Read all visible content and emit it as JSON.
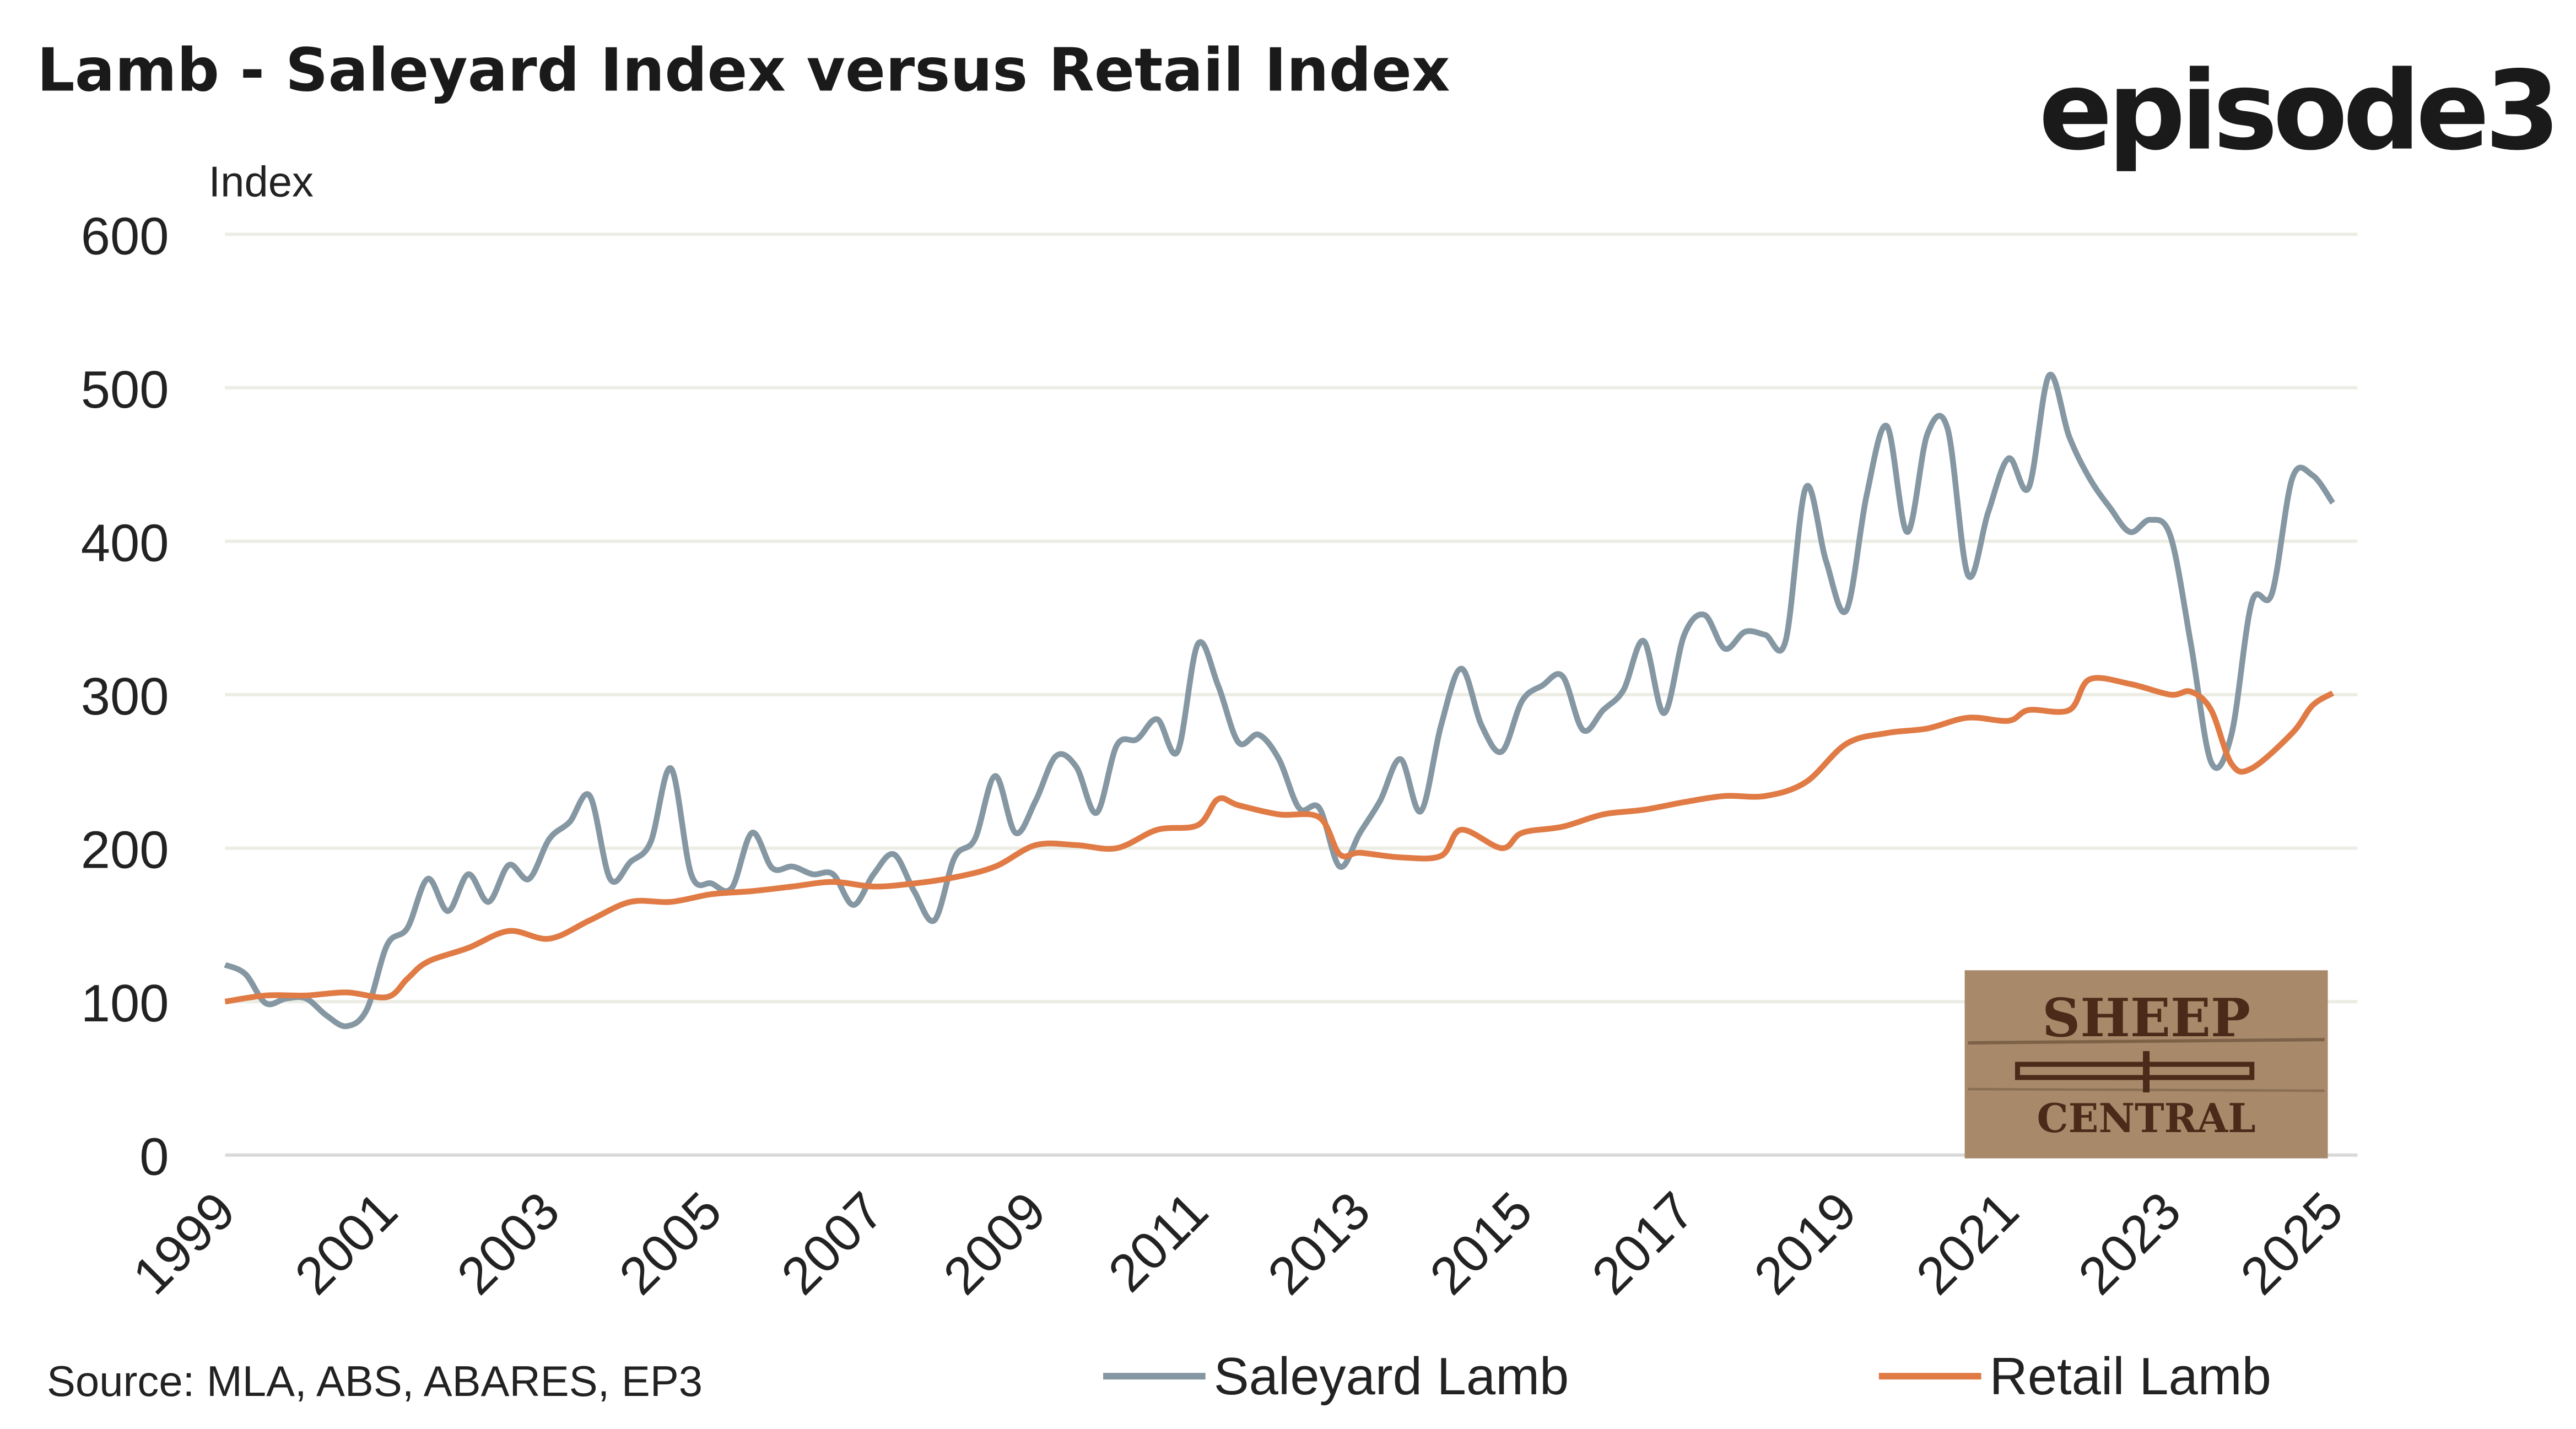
{
  "title": "Lamb - Saleyard Index versus Retail Index",
  "brand_logo": "episode3",
  "watermark_logo": {
    "line1": "SHEEP",
    "line2": "CENTRAL"
  },
  "source": "Source: MLA, ABS, ABARES, EP3",
  "colors": {
    "saleyard": "#8597a2",
    "retail": "#e07b45",
    "grid": "#ecede4"
  },
  "chart_data": {
    "type": "line",
    "title": "Lamb - Saleyard Index versus Retail Index",
    "ylabel": "Index",
    "xlabel": "",
    "ylim": [
      0,
      600
    ],
    "xlim": [
      1999,
      2025
    ],
    "yticks": [
      0,
      100,
      200,
      300,
      400,
      500,
      600
    ],
    "xticks": [
      "1999",
      "2001",
      "2003",
      "2005",
      "2007",
      "2009",
      "2011",
      "2013",
      "2015",
      "2017",
      "2019",
      "2021",
      "2023",
      "2025"
    ],
    "grid": true,
    "legend_position": "bottom",
    "series": [
      {
        "name": "Saleyard Lamb",
        "color": "#8597a2",
        "x": [
          1999,
          1999.25,
          1999.5,
          1999.75,
          2000,
          2000.25,
          2000.5,
          2000.75,
          2001,
          2001.25,
          2001.5,
          2001.75,
          2002,
          2002.25,
          2002.5,
          2002.75,
          2003,
          2003.25,
          2003.5,
          2003.75,
          2004,
          2004.25,
          2004.5,
          2004.75,
          2005,
          2005.25,
          2005.5,
          2005.75,
          2006,
          2006.25,
          2006.5,
          2006.75,
          2007,
          2007.25,
          2007.5,
          2007.75,
          2008,
          2008.25,
          2008.5,
          2008.75,
          2009,
          2009.25,
          2009.5,
          2009.75,
          2010,
          2010.25,
          2010.5,
          2010.75,
          2011,
          2011.25,
          2011.5,
          2011.75,
          2012,
          2012.25,
          2012.5,
          2012.75,
          2013,
          2013.25,
          2013.5,
          2013.75,
          2014,
          2014.25,
          2014.5,
          2014.75,
          2015,
          2015.25,
          2015.5,
          2015.75,
          2016,
          2016.25,
          2016.5,
          2016.75,
          2017,
          2017.25,
          2017.5,
          2017.75,
          2018,
          2018.25,
          2018.5,
          2018.75,
          2019,
          2019.25,
          2019.5,
          2019.75,
          2020,
          2020.25,
          2020.5,
          2020.75,
          2021,
          2021.25,
          2021.5,
          2021.75,
          2022,
          2022.25,
          2022.5,
          2022.75,
          2023,
          2023.25,
          2023.5,
          2023.75,
          2024,
          2024.25,
          2024.5,
          2024.75,
          2025
        ],
        "values": [
          124,
          118,
          99,
          102,
          102,
          91,
          84,
          95,
          137,
          148,
          180,
          159,
          183,
          165,
          189,
          180,
          206,
          217,
          234,
          180,
          191,
          204,
          252,
          183,
          177,
          174,
          210,
          187,
          188,
          183,
          183,
          163,
          183,
          196,
          172,
          153,
          194,
          206,
          247,
          210,
          231,
          260,
          253,
          223,
          267,
          271,
          284,
          263,
          333,
          306,
          269,
          274,
          258,
          226,
          226,
          188,
          210,
          231,
          258,
          224,
          280,
          317,
          280,
          263,
          296,
          306,
          312,
          277,
          290,
          303,
          335,
          288,
          339,
          352,
          330,
          341,
          339,
          335,
          435,
          387,
          355,
          430,
          475,
          406,
          470,
          473,
          378,
          419,
          454,
          435,
          508,
          468,
          441,
          422,
          406,
          414,
          403,
          333,
          256,
          274,
          360,
          366,
          441,
          443,
          425
        ]
      },
      {
        "name": "Retail Lamb",
        "color": "#e07b45",
        "x": [
          1999,
          1999.5,
          2000,
          2000.5,
          2001,
          2001.25,
          2001.5,
          2002,
          2002.5,
          2003,
          2003.5,
          2004,
          2004.5,
          2005,
          2005.5,
          2006,
          2006.5,
          2007,
          2007.5,
          2008,
          2008.5,
          2009,
          2009.5,
          2010,
          2010.5,
          2011,
          2011.25,
          2011.5,
          2012,
          2012.5,
          2012.75,
          2013,
          2013.5,
          2014,
          2014.25,
          2014.75,
          2015,
          2015.5,
          2016,
          2016.5,
          2017,
          2017.5,
          2018,
          2018.5,
          2019,
          2019.5,
          2020,
          2020.5,
          2021,
          2021.25,
          2021.75,
          2022,
          2022.5,
          2023,
          2023.25,
          2023.5,
          2023.75,
          2024,
          2024.5,
          2024.75,
          2025
        ],
        "values": [
          100,
          104,
          104,
          106,
          103,
          115,
          126,
          135,
          146,
          141,
          153,
          165,
          165,
          170,
          172,
          175,
          178,
          175,
          177,
          181,
          188,
          202,
          202,
          200,
          212,
          215,
          232,
          228,
          222,
          220,
          196,
          197,
          194,
          195,
          212,
          200,
          210,
          214,
          222,
          225,
          230,
          234,
          234,
          243,
          268,
          275,
          278,
          285,
          283,
          290,
          290,
          310,
          307,
          300,
          302,
          290,
          255,
          252,
          275,
          293,
          301
        ]
      }
    ]
  }
}
